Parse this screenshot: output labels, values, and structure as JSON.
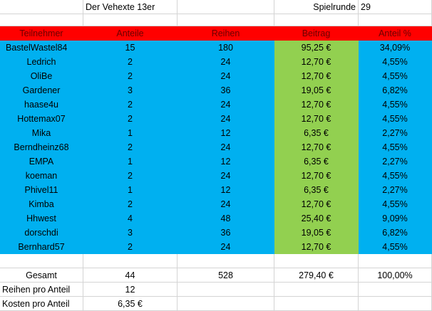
{
  "title_row": {
    "title": "Der Vehexte 13er",
    "round_label": "Spielrunde",
    "round_number": "29"
  },
  "headers": {
    "name": "Teilnehmer",
    "shares": "Anteile",
    "rows": "Reihen",
    "contribution": "Beitrag",
    "share_pct": "Anteil %"
  },
  "participants": [
    {
      "name": "BastelWastel84",
      "shares": "15",
      "rows": "180",
      "contribution": "95,25 €",
      "pct": "34,09%"
    },
    {
      "name": "Ledrich",
      "shares": "2",
      "rows": "24",
      "contribution": "12,70 €",
      "pct": "4,55%"
    },
    {
      "name": "OliBe",
      "shares": "2",
      "rows": "24",
      "contribution": "12,70 €",
      "pct": "4,55%"
    },
    {
      "name": "Gardener",
      "shares": "3",
      "rows": "36",
      "contribution": "19,05 €",
      "pct": "6,82%"
    },
    {
      "name": "haase4u",
      "shares": "2",
      "rows": "24",
      "contribution": "12,70 €",
      "pct": "4,55%"
    },
    {
      "name": "Hottemax07",
      "shares": "2",
      "rows": "24",
      "contribution": "12,70 €",
      "pct": "4,55%"
    },
    {
      "name": "Mika",
      "shares": "1",
      "rows": "12",
      "contribution": "6,35 €",
      "pct": "2,27%"
    },
    {
      "name": "Berndheinz68",
      "shares": "2",
      "rows": "24",
      "contribution": "12,70 €",
      "pct": "4,55%"
    },
    {
      "name": "EMPA",
      "shares": "1",
      "rows": "12",
      "contribution": "6,35 €",
      "pct": "2,27%"
    },
    {
      "name": "koeman",
      "shares": "2",
      "rows": "24",
      "contribution": "12,70 €",
      "pct": "4,55%"
    },
    {
      "name": "Phivel11",
      "shares": "1",
      "rows": "12",
      "contribution": "6,35 €",
      "pct": "2,27%"
    },
    {
      "name": "Kimba",
      "shares": "2",
      "rows": "24",
      "contribution": "12,70 €",
      "pct": "4,55%"
    },
    {
      "name": "Hhwest",
      "shares": "4",
      "rows": "48",
      "contribution": "25,40 €",
      "pct": "9,09%"
    },
    {
      "name": "dorschdi",
      "shares": "3",
      "rows": "36",
      "contribution": "19,05 €",
      "pct": "6,82%"
    },
    {
      "name": "Bernhard57",
      "shares": "2",
      "rows": "24",
      "contribution": "12,70 €",
      "pct": "4,55%"
    }
  ],
  "totals": {
    "label": "Gesamt",
    "shares": "44",
    "rows": "528",
    "contribution": "279,40 €",
    "pct": "100,00%"
  },
  "rows_per_share": {
    "label": "Reihen pro Anteil",
    "value": "12"
  },
  "cost_per_share": {
    "label": "Kosten pro Anteil",
    "value": "6,35 €"
  },
  "colors": {
    "header": "#ff0000",
    "participant_fill": "#00b0f0",
    "contribution_fill": "#92d050",
    "gridline": "#d4d4d4"
  }
}
